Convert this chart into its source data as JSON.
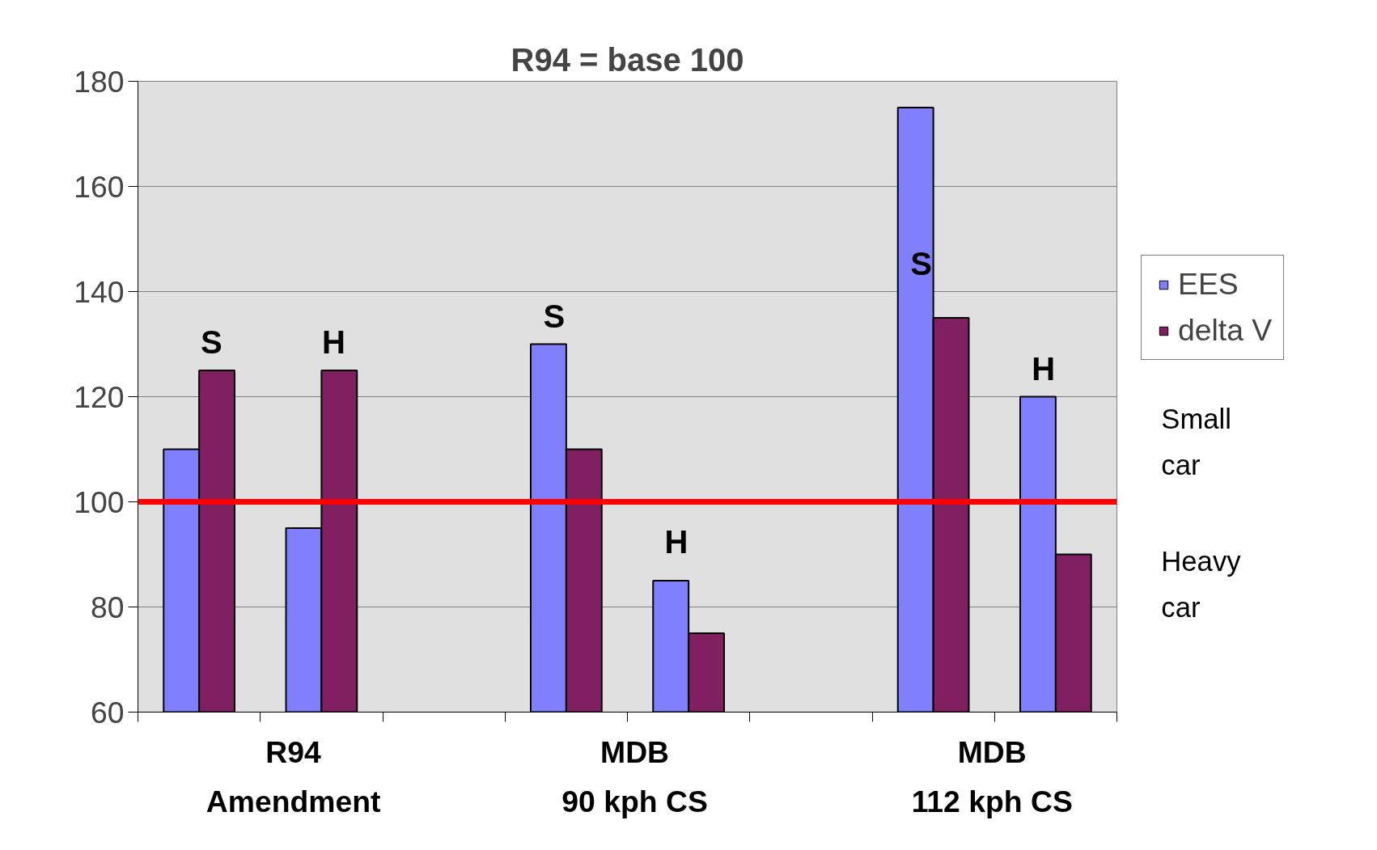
{
  "chart_data": {
    "type": "bar",
    "title": "R94 = base 100",
    "categories": [
      null,
      null,
      null,
      null,
      null,
      null,
      null,
      null
    ],
    "series": [
      {
        "name": "EES",
        "color": "#8080ff",
        "values": [
          110,
          95,
          null,
          130,
          85,
          null,
          175,
          120
        ]
      },
      {
        "name": "delta V",
        "color": "#802060",
        "values": [
          125,
          125,
          null,
          110,
          75,
          null,
          135,
          90
        ]
      }
    ],
    "ylim": [
      60,
      180
    ],
    "yticks": [
      60,
      80,
      100,
      120,
      140,
      160,
      180
    ],
    "grid": "y",
    "legend": "right",
    "ref_lines": [
      {
        "axis": "y",
        "value": 100,
        "color": "#ff0000"
      }
    ],
    "annotations": [
      "S",
      "H",
      "S",
      "H",
      "S",
      "H",
      "R94\nAmendment",
      "MDB\n90 kph CS",
      "MDB\n112 kph CS",
      "Small\ncar",
      "Heavy\ncar"
    ]
  }
}
